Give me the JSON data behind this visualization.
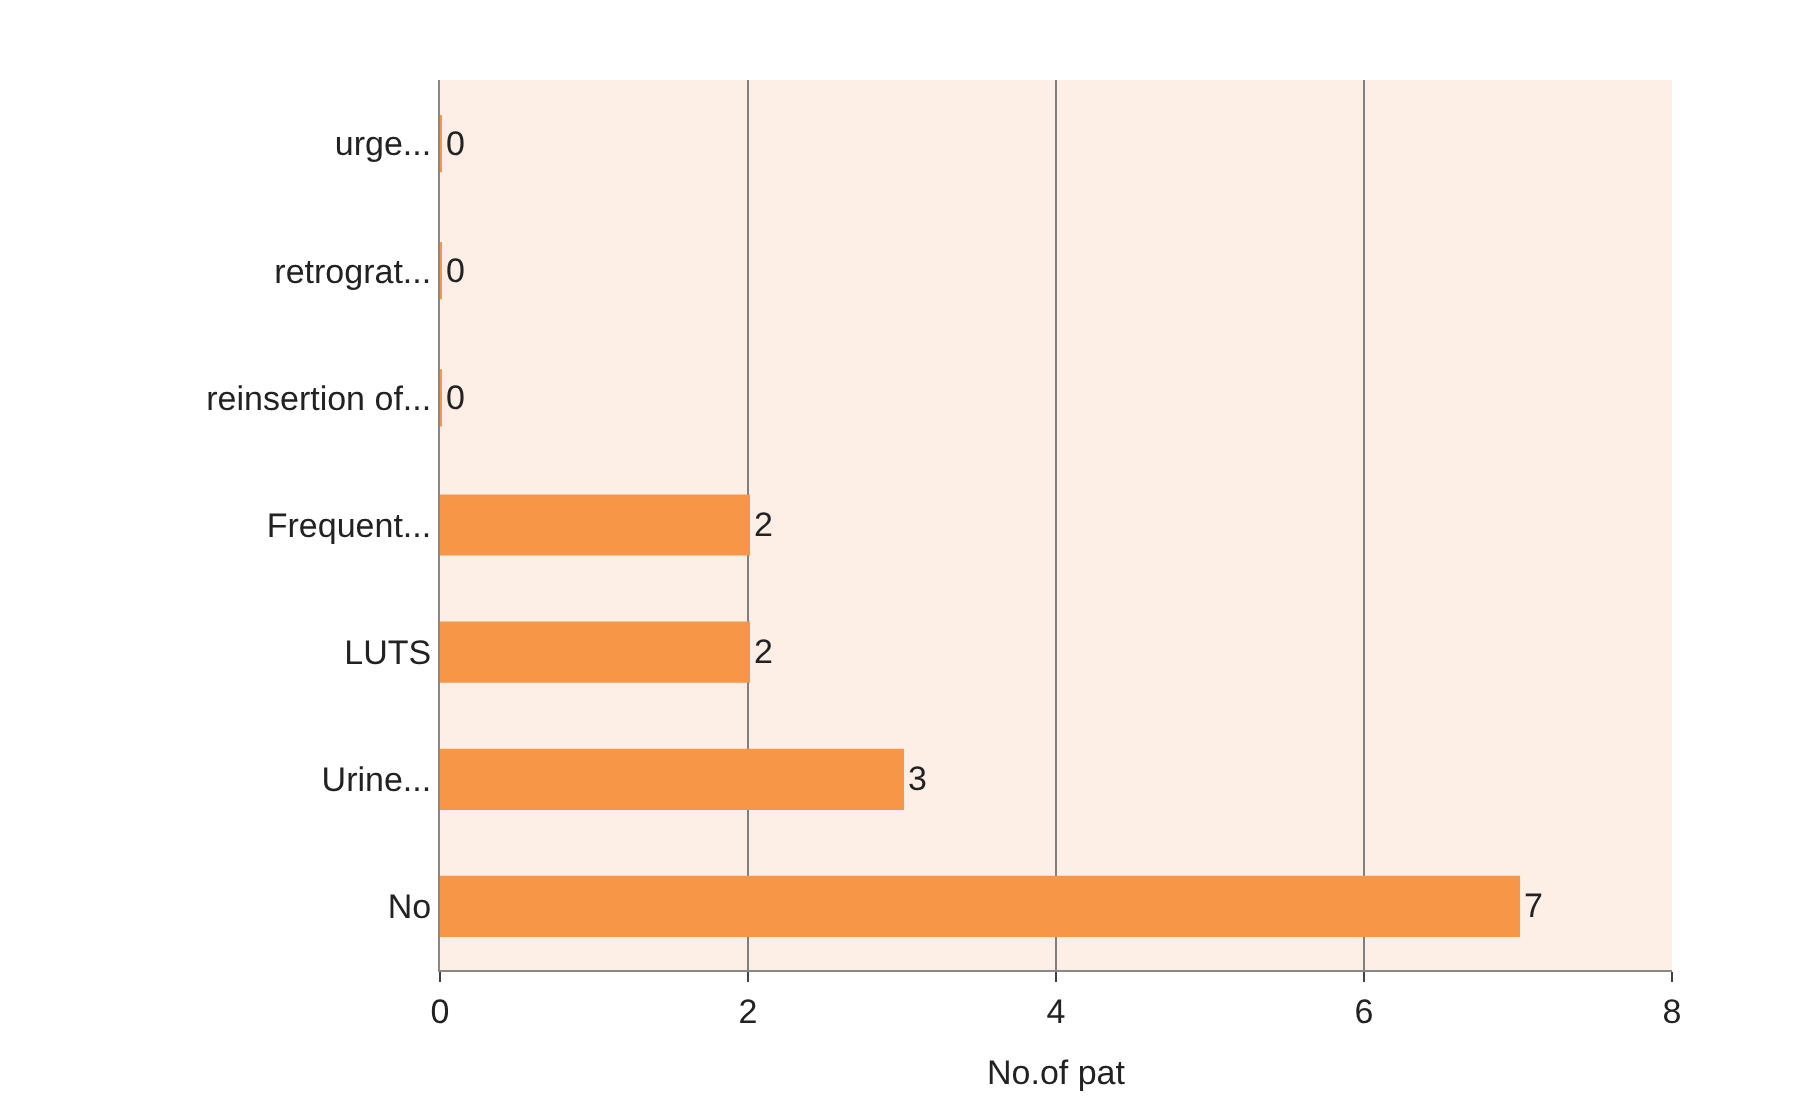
{
  "chart_data": {
    "type": "bar",
    "orientation": "horizontal",
    "xlabel": "No.of pat",
    "categories": [
      "urge...",
      "retrograt...",
      "reinsertion of...",
      "Frequent...",
      "LUTS",
      "Urine...",
      "No"
    ],
    "values": [
      0,
      0,
      0,
      2,
      2,
      3,
      7
    ],
    "color": "#f79646",
    "xlim": [
      0,
      8
    ],
    "xticks": [
      0,
      2,
      4,
      6,
      8
    ],
    "grid": "x",
    "data_labels": true
  }
}
